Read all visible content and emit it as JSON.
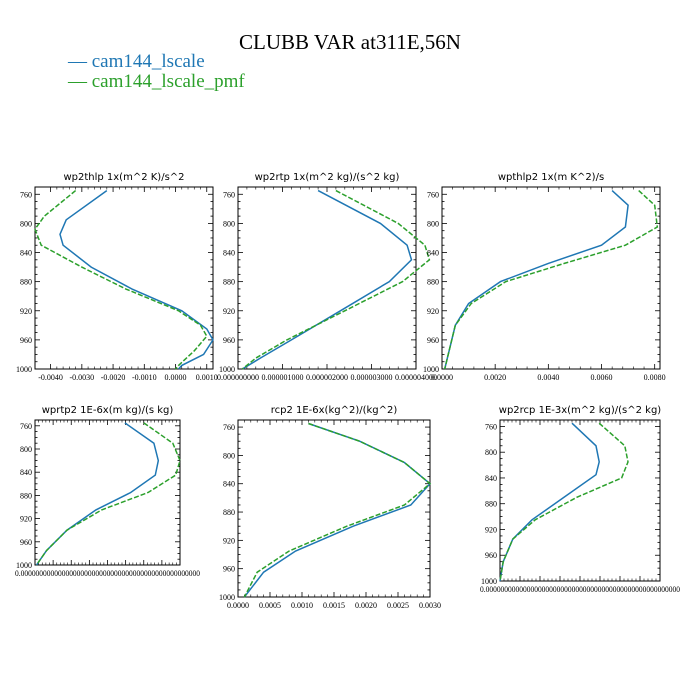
{
  "title": "CLUBB VAR at311E,56N",
  "legend": [
    {
      "label": "cam144_lscale",
      "color": "#1f77b4"
    },
    {
      "label": "cam144_lscale_pmf",
      "color": "#2ca02c"
    }
  ],
  "chart_data": [
    {
      "type": "line",
      "title": "wp2thlp  1x(m^2 K)/s^2",
      "xlim": [
        -0.0045,
        0.0012
      ],
      "xticks": [
        -0.004,
        -0.003,
        -0.002,
        -0.001,
        0.0,
        0.001
      ],
      "xticklabels": [
        "-0.0040",
        "-0.0030",
        "-0.0020",
        "-0.0010",
        "0.0000",
        "0.0010"
      ],
      "ylim": [
        1000,
        750
      ],
      "yticks": [
        760,
        800,
        840,
        880,
        920,
        960,
        1000
      ],
      "series": [
        {
          "name": "cam144_lscale",
          "color": "#1f77b4",
          "dashed": false,
          "points": [
            [
              -0.0022,
              755
            ],
            [
              -0.0035,
              795
            ],
            [
              -0.0037,
              815
            ],
            [
              -0.0036,
              830
            ],
            [
              -0.0027,
              860
            ],
            [
              -0.0014,
              890
            ],
            [
              0.0002,
              920
            ],
            [
              0.001,
              945
            ],
            [
              0.0012,
              960
            ],
            [
              0.0009,
              980
            ],
            [
              0.0002,
              995
            ],
            [
              0.0001,
              1000
            ]
          ]
        },
        {
          "name": "cam144_lscale_pmf",
          "color": "#2ca02c",
          "dashed": true,
          "points": [
            [
              -0.0032,
              755
            ],
            [
              -0.0042,
              790
            ],
            [
              -0.0045,
              808
            ],
            [
              -0.0043,
              830
            ],
            [
              -0.003,
              860
            ],
            [
              -0.0016,
              890
            ],
            [
              0.0001,
              920
            ],
            [
              0.0008,
              940
            ],
            [
              0.001,
              955
            ],
            [
              0.0006,
              975
            ],
            [
              0.0001,
              995
            ],
            [
              0.0,
              1000
            ]
          ]
        }
      ]
    },
    {
      "type": "line",
      "title": "wp2rtp  1x(m^2 kg)/(s^2 kg)",
      "xlim": [
        0,
        4e-06
      ],
      "xticks": [
        0,
        1e-06,
        2e-06,
        3e-06,
        4e-06
      ],
      "xticklabels": [
        "0.000000000",
        "0.000001000",
        "0.000002000",
        "0.000003000",
        "0.000004000"
      ],
      "ylim": [
        1000,
        750
      ],
      "yticks": [
        760,
        800,
        840,
        880,
        920,
        960,
        1000
      ],
      "series": [
        {
          "name": "cam144_lscale",
          "color": "#1f77b4",
          "dashed": false,
          "points": [
            [
              1.8e-06,
              755
            ],
            [
              3.2e-06,
              800
            ],
            [
              3.8e-06,
              830
            ],
            [
              3.9e-06,
              850
            ],
            [
              3.4e-06,
              880
            ],
            [
              2.3e-06,
              920
            ],
            [
              1.2e-06,
              960
            ],
            [
              5e-07,
              985
            ],
            [
              1e-07,
              1000
            ]
          ]
        },
        {
          "name": "cam144_lscale_pmf",
          "color": "#2ca02c",
          "dashed": true,
          "points": [
            [
              2.2e-06,
              755
            ],
            [
              3.6e-06,
              800
            ],
            [
              4.2e-06,
              830
            ],
            [
              4.3e-06,
              850
            ],
            [
              3.7e-06,
              880
            ],
            [
              2.4e-06,
              920
            ],
            [
              1.1e-06,
              960
            ],
            [
              4e-07,
              985
            ],
            [
              1e-07,
              1000
            ]
          ]
        }
      ]
    },
    {
      "type": "line",
      "title": "wpthlp2  1x(m K^2)/s",
      "xlim": [
        0,
        0.0082
      ],
      "xticks": [
        0,
        0.002,
        0.004,
        0.006,
        0.008
      ],
      "xticklabels": [
        "0.0000",
        "0.0020",
        "0.0040",
        "0.0060",
        "0.0080"
      ],
      "ylim": [
        1000,
        750
      ],
      "yticks": [
        760,
        800,
        840,
        880,
        920,
        960,
        1000
      ],
      "series": [
        {
          "name": "cam144_lscale",
          "color": "#1f77b4",
          "dashed": false,
          "points": [
            [
              0.0064,
              755
            ],
            [
              0.007,
              775
            ],
            [
              0.0069,
              805
            ],
            [
              0.006,
              830
            ],
            [
              0.004,
              855
            ],
            [
              0.0022,
              880
            ],
            [
              0.001,
              910
            ],
            [
              0.0005,
              940
            ],
            [
              0.0003,
              970
            ],
            [
              0.0001,
              1000
            ]
          ]
        },
        {
          "name": "cam144_lscale_pmf",
          "color": "#2ca02c",
          "dashed": true,
          "points": [
            [
              0.0074,
              755
            ],
            [
              0.008,
              775
            ],
            [
              0.0081,
              805
            ],
            [
              0.0069,
              830
            ],
            [
              0.0046,
              855
            ],
            [
              0.0024,
              880
            ],
            [
              0.0011,
              910
            ],
            [
              0.0005,
              940
            ],
            [
              0.0003,
              970
            ],
            [
              0.0001,
              1000
            ]
          ]
        }
      ]
    },
    {
      "type": "line",
      "title": "wprtp2  1E-6x(m kg)/(s kg)",
      "xlim": [
        0,
        1
      ],
      "xticks": [
        0,
        0.125,
        0.25,
        0.375,
        0.5,
        0.625,
        0.75,
        0.875,
        1.0
      ],
      "xticklabels": [],
      "xlabel_text": "0.000000000000000000000000000000000000000000000000",
      "ylim": [
        1000,
        750
      ],
      "yticks": [
        760,
        800,
        840,
        880,
        920,
        960,
        1000
      ],
      "series": [
        {
          "name": "cam144_lscale",
          "color": "#1f77b4",
          "dashed": false,
          "points": [
            [
              0.62,
              755
            ],
            [
              0.82,
              790
            ],
            [
              0.85,
              820
            ],
            [
              0.83,
              845
            ],
            [
              0.66,
              875
            ],
            [
              0.42,
              905
            ],
            [
              0.22,
              940
            ],
            [
              0.08,
              975
            ],
            [
              0.01,
              1000
            ]
          ]
        },
        {
          "name": "cam144_lscale_pmf",
          "color": "#2ca02c",
          "dashed": true,
          "points": [
            [
              0.75,
              755
            ],
            [
              0.95,
              790
            ],
            [
              1.0,
              820
            ],
            [
              0.97,
              845
            ],
            [
              0.78,
              875
            ],
            [
              0.46,
              905
            ],
            [
              0.22,
              940
            ],
            [
              0.08,
              975
            ],
            [
              0.01,
              1000
            ]
          ]
        }
      ]
    },
    {
      "type": "line",
      "title": "rcp2  1E-6x(kg^2)/(kg^2)",
      "xlim": [
        0,
        0.003
      ],
      "xticks": [
        0,
        0.0005,
        0.001,
        0.0015,
        0.002,
        0.0025,
        0.003
      ],
      "xticklabels": [
        "0.0000",
        "0.0005",
        "0.0010",
        "0.0015",
        "0.0020",
        "0.0025",
        "0.0030"
      ],
      "ylim": [
        1000,
        750
      ],
      "yticks": [
        760,
        800,
        840,
        880,
        920,
        960,
        1000
      ],
      "series": [
        {
          "name": "cam144_lscale",
          "color": "#1f77b4",
          "dashed": false,
          "points": [
            [
              0.0011,
              755
            ],
            [
              0.0019,
              780
            ],
            [
              0.0026,
              810
            ],
            [
              0.003,
              840
            ],
            [
              0.0027,
              870
            ],
            [
              0.0018,
              900
            ],
            [
              0.0009,
              935
            ],
            [
              0.0004,
              965
            ],
            [
              0.0001,
              1000
            ]
          ]
        },
        {
          "name": "cam144_lscale_pmf",
          "color": "#2ca02c",
          "dashed": true,
          "points": [
            [
              0.0011,
              755
            ],
            [
              0.0019,
              780
            ],
            [
              0.0026,
              810
            ],
            [
              0.003,
              840
            ],
            [
              0.0026,
              870
            ],
            [
              0.0017,
              900
            ],
            [
              0.0008,
              935
            ],
            [
              0.0003,
              965
            ],
            [
              0.0001,
              1000
            ]
          ]
        }
      ]
    },
    {
      "type": "line",
      "title": "wp2rcp  1E-3x(m^2 kg)/(s^2 kg)",
      "xlim": [
        0,
        1
      ],
      "xticks": [
        0,
        0.125,
        0.25,
        0.375,
        0.5,
        0.625,
        0.75,
        0.875,
        1.0
      ],
      "xticklabels": [],
      "xlabel_text": "0.0000000000000000000000000000000000000000000000000000",
      "ylim": [
        1000,
        750
      ],
      "yticks": [
        760,
        800,
        840,
        880,
        920,
        960,
        1000
      ],
      "series": [
        {
          "name": "cam144_lscale",
          "color": "#1f77b4",
          "dashed": false,
          "points": [
            [
              0.45,
              755
            ],
            [
              0.6,
              790
            ],
            [
              0.62,
              815
            ],
            [
              0.6,
              835
            ],
            [
              0.4,
              870
            ],
            [
              0.2,
              905
            ],
            [
              0.08,
              935
            ],
            [
              0.02,
              970
            ],
            [
              0.0,
              1000
            ]
          ]
        },
        {
          "name": "cam144_lscale_pmf",
          "color": "#2ca02c",
          "dashed": true,
          "points": [
            [
              0.62,
              755
            ],
            [
              0.78,
              790
            ],
            [
              0.8,
              815
            ],
            [
              0.76,
              840
            ],
            [
              0.48,
              870
            ],
            [
              0.22,
              905
            ],
            [
              0.08,
              935
            ],
            [
              0.02,
              970
            ],
            [
              0.0,
              1000
            ]
          ]
        }
      ]
    }
  ]
}
